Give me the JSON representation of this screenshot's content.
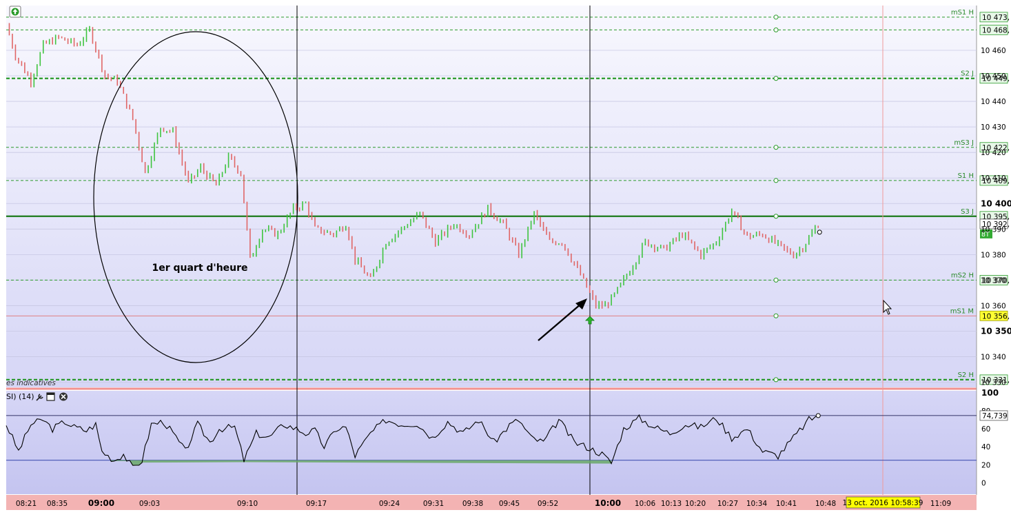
{
  "chart_data": [
    {
      "type": "line",
      "y_ticks": [
        "10 460",
        "10 450",
        "10 440",
        "10 430",
        "10 420",
        "10 410",
        "10 400",
        "10 390",
        "10 380",
        "10 370",
        "10 360",
        "10 350",
        "10 340",
        "10 330"
      ],
      "ylim": [
        10328,
        10477
      ],
      "x_ticks": [
        "08:21",
        "08:35",
        "09:00",
        "09:03",
        "09:10",
        "09:17",
        "09:24",
        "09:31",
        "09:38",
        "09:45",
        "09:52",
        "10:00",
        "10:06",
        "10:13",
        "10:20",
        "10:27",
        "10:34",
        "10:41",
        "10:48",
        "11:09"
      ],
      "bold_ticks": [
        "09:00",
        "10:00"
      ],
      "up_color": "#3ec43e",
      "down_color": "#e06666",
      "price_path": [
        [
          0,
          10470
        ],
        [
          3,
          10458
        ],
        [
          8,
          10448
        ],
        [
          12,
          10462
        ],
        [
          17,
          10465
        ],
        [
          23,
          10462
        ],
        [
          27,
          10468
        ],
        [
          32,
          10450
        ],
        [
          36,
          10448
        ],
        [
          41,
          10433
        ],
        [
          45,
          10412
        ],
        [
          50,
          10430
        ],
        [
          54,
          10428
        ],
        [
          59,
          10408
        ],
        [
          63,
          10414
        ],
        [
          68,
          10407
        ],
        [
          72,
          10418
        ],
        [
          76,
          10412
        ],
        [
          79,
          10378
        ],
        [
          83,
          10390
        ],
        [
          88,
          10388
        ],
        [
          93,
          10398
        ],
        [
          97,
          10400
        ],
        [
          100,
          10390
        ],
        [
          106,
          10388
        ],
        [
          110,
          10392
        ],
        [
          113,
          10378
        ],
        [
          118,
          10370
        ],
        [
          123,
          10385
        ],
        [
          128,
          10390
        ],
        [
          134,
          10396
        ],
        [
          139,
          10385
        ],
        [
          145,
          10392
        ],
        [
          150,
          10388
        ],
        [
          156,
          10398
        ],
        [
          161,
          10392
        ],
        [
          166,
          10380
        ],
        [
          171,
          10396
        ],
        [
          176,
          10385
        ],
        [
          180,
          10385
        ],
        [
          186,
          10372
        ],
        [
          191,
          10360
        ],
        [
          194,
          10360
        ],
        [
          197,
          10364
        ],
        [
          203,
          10376
        ],
        [
          207,
          10385
        ],
        [
          213,
          10382
        ],
        [
          219,
          10388
        ],
        [
          225,
          10380
        ],
        [
          230,
          10385
        ],
        [
          235,
          10397
        ],
        [
          240,
          10387
        ],
        [
          245,
          10388
        ],
        [
          252,
          10382
        ],
        [
          255,
          10380
        ],
        [
          258,
          10383
        ],
        [
          263,
          10392
        ]
      ],
      "levels": [
        {
          "label": "mS1 H",
          "value": "10 473,",
          "y": 10473,
          "style": "dashed-thin"
        },
        {
          "label": "",
          "value": "10 468,",
          "y": 10468,
          "style": "dashed-thin"
        },
        {
          "label": "S2 J",
          "value": "10 449,",
          "y": 10449,
          "style": "dashed-bold"
        },
        {
          "label": "mS3 J",
          "value": "10 422,",
          "y": 10422,
          "style": "dashed-thin"
        },
        {
          "label": "S1 H",
          "value": "10 409,",
          "y": 10409,
          "style": "dashed-thin"
        },
        {
          "label": "S3 J",
          "value": "10 395,",
          "y": 10395,
          "style": "solid-bold"
        },
        {
          "label": "mS2 H",
          "value": "10 370,",
          "y": 10370,
          "style": "dashed-thin"
        },
        {
          "label": "mS1 M",
          "value": "10 356,",
          "y": 10356,
          "style": "red-thin"
        },
        {
          "label": "S2 H",
          "value": "10 331,",
          "y": 10331,
          "style": "dashed-bold"
        }
      ],
      "bold_ticks_y": [
        "10 400",
        "10 350"
      ],
      "current_price": {
        "value": "10 392,",
        "y": 10392,
        "tag": "8T"
      },
      "session_markers": [
        "09:00",
        "09:15",
        "10:00"
      ],
      "annotation": "1er quart d'heure",
      "legend_text": "es indicatives"
    },
    {
      "type": "line",
      "title": "SI) (14)",
      "ylim": [
        -12,
        100
      ],
      "y_ticks": [
        "100",
        "80",
        "60",
        "40",
        "20",
        "0"
      ],
      "overbought": 74.739,
      "oversold": 25,
      "current_value": "74,739",
      "rsi_path": [
        [
          0,
          65
        ],
        [
          4,
          35
        ],
        [
          8,
          65
        ],
        [
          12,
          70
        ],
        [
          15,
          60
        ],
        [
          19,
          68
        ],
        [
          22,
          62
        ],
        [
          26,
          58
        ],
        [
          29,
          65
        ],
        [
          31,
          35
        ],
        [
          35,
          25
        ],
        [
          38,
          32
        ],
        [
          41,
          16
        ],
        [
          44,
          25
        ],
        [
          47,
          65
        ],
        [
          51,
          68
        ],
        [
          54,
          55
        ],
        [
          58,
          35
        ],
        [
          62,
          65
        ],
        [
          66,
          45
        ],
        [
          69,
          60
        ],
        [
          74,
          62
        ],
        [
          77,
          25
        ],
        [
          81,
          55
        ],
        [
          85,
          50
        ],
        [
          90,
          65
        ],
        [
          94,
          60
        ],
        [
          97,
          55
        ],
        [
          100,
          58
        ],
        [
          103,
          40
        ],
        [
          107,
          60
        ],
        [
          110,
          62
        ],
        [
          113,
          30
        ],
        [
          118,
          55
        ],
        [
          123,
          70
        ],
        [
          128,
          65
        ],
        [
          133,
          66
        ],
        [
          138,
          50
        ],
        [
          143,
          68
        ],
        [
          148,
          55
        ],
        [
          153,
          70
        ],
        [
          158,
          45
        ],
        [
          163,
          64
        ],
        [
          166,
          70
        ],
        [
          170,
          50
        ],
        [
          174,
          45
        ],
        [
          179,
          70
        ],
        [
          184,
          45
        ],
        [
          188,
          40
        ],
        [
          193,
          32
        ],
        [
          196,
          22
        ],
        [
          200,
          60
        ],
        [
          205,
          72
        ],
        [
          210,
          62
        ],
        [
          215,
          55
        ],
        [
          220,
          65
        ],
        [
          225,
          62
        ],
        [
          230,
          72
        ],
        [
          235,
          50
        ],
        [
          240,
          60
        ],
        [
          245,
          35
        ],
        [
          250,
          30
        ],
        [
          255,
          50
        ],
        [
          260,
          70
        ],
        [
          263,
          74.7
        ]
      ]
    }
  ],
  "time_label": "13 oct. 2016 10:58:39"
}
